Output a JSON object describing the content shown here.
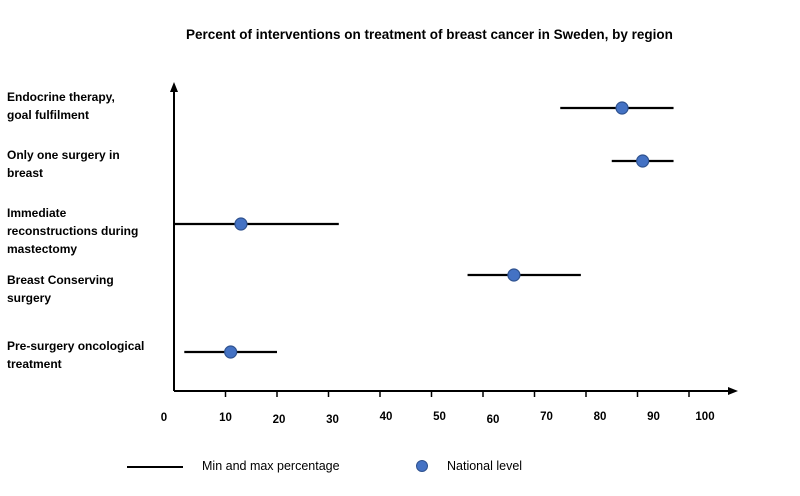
{
  "chart_data": {
    "type": "scatter",
    "title": "Percent of interventions on treatment of breast cancer in Sweden, by region",
    "xlabel": "",
    "ylabel": "",
    "xlim": [
      0,
      110
    ],
    "x_ticks": [
      0,
      10,
      20,
      30,
      40,
      50,
      60,
      70,
      80,
      90,
      100
    ],
    "categories": [
      "Endocrine therapy, goal fulfilment",
      "Only one surgery in breast",
      "Immediate reconstructions during mastectomy",
      "Breast Conserving surgery",
      "Pre-surgery oncological treatment"
    ],
    "category_lines": [
      [
        "Endocrine therapy,",
        "goal fulfilment"
      ],
      [
        "Only one surgery in",
        "breast"
      ],
      [
        "Immediate",
        "reconstructions during",
        "mastectomy"
      ],
      [
        "Breast Conserving",
        "surgery"
      ],
      [
        "Pre-surgery oncological",
        "treatment"
      ]
    ],
    "series": [
      {
        "name": "Min and max percentage",
        "ranges": [
          [
            75,
            97
          ],
          [
            85,
            97
          ],
          [
            0,
            32
          ],
          [
            57,
            79
          ],
          [
            2,
            20
          ]
        ]
      },
      {
        "name": "National level",
        "values": [
          87,
          91,
          13,
          66,
          11
        ]
      }
    ],
    "legend_placement": "bottom",
    "grid": false,
    "colors": {
      "point": "#4472C4",
      "point_edge": "#2F528F",
      "line": "#000000"
    }
  }
}
